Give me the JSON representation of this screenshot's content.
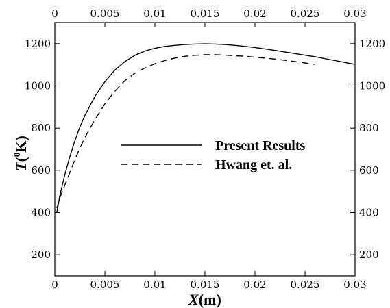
{
  "chart_data": {
    "type": "line",
    "xlabel": {
      "italic": "X",
      "unit": "(m)"
    },
    "ylabel": {
      "italic": "T",
      "sup": "0",
      "unit": "K"
    },
    "xlim": [
      0,
      0.03
    ],
    "ylim": [
      100,
      1300
    ],
    "x_ticks": [
      0,
      0.005,
      0.01,
      0.015,
      0.02,
      0.025,
      0.03
    ],
    "x_tick_labels": [
      "0",
      "0.005",
      "0.01",
      "0.015",
      "0.02",
      "0.025",
      "0.03"
    ],
    "y_ticks": [
      200,
      400,
      600,
      800,
      1000,
      1200
    ],
    "y_tick_labels": [
      "200",
      "400",
      "600",
      "800",
      "1000",
      "1200"
    ],
    "mirror_axes": true,
    "grid": false,
    "legend": {
      "placement": "center"
    },
    "series": [
      {
        "name": "Present Results",
        "style": "solid",
        "x": [
          0.0002,
          0.0005,
          0.001,
          0.0015,
          0.002,
          0.0025,
          0.003,
          0.004,
          0.005,
          0.006,
          0.007,
          0.008,
          0.009,
          0.01,
          0.011,
          0.012,
          0.013,
          0.014,
          0.015,
          0.016,
          0.017,
          0.018,
          0.019,
          0.02,
          0.022,
          0.024,
          0.026,
          0.028,
          0.03
        ],
        "y": [
          400,
          480,
          580,
          665,
          740,
          805,
          860,
          950,
          1020,
          1075,
          1115,
          1145,
          1165,
          1178,
          1187,
          1192,
          1196,
          1198,
          1199,
          1198,
          1196,
          1192,
          1187,
          1182,
          1168,
          1153,
          1138,
          1120,
          1102
        ]
      },
      {
        "name": "Hwang et. al.",
        "style": "dashed",
        "x": [
          0.0002,
          0.0005,
          0.001,
          0.0015,
          0.002,
          0.0025,
          0.003,
          0.004,
          0.005,
          0.006,
          0.007,
          0.008,
          0.009,
          0.01,
          0.011,
          0.012,
          0.013,
          0.014,
          0.015,
          0.016,
          0.017,
          0.018,
          0.019,
          0.02,
          0.022,
          0.024,
          0.026
        ],
        "y": [
          420,
          470,
          530,
          590,
          650,
          705,
          755,
          840,
          915,
          975,
          1025,
          1060,
          1085,
          1105,
          1120,
          1132,
          1140,
          1145,
          1148,
          1148,
          1146,
          1143,
          1140,
          1136,
          1127,
          1115,
          1102
        ]
      }
    ]
  },
  "colors": {
    "line": "#000000",
    "axis": "#000000",
    "background": "#ffffff"
  }
}
